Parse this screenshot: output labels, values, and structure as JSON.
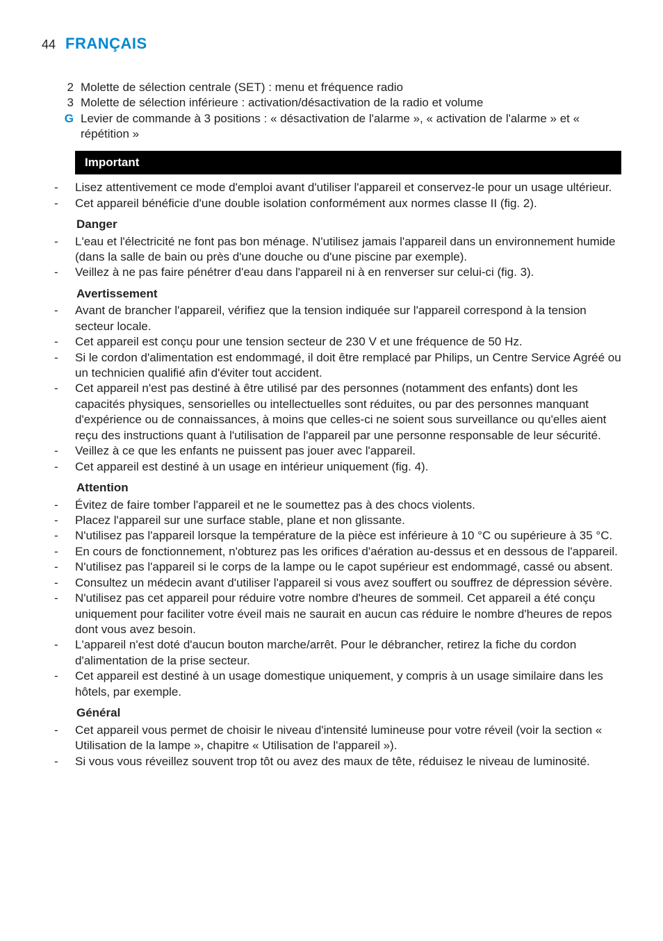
{
  "page": {
    "number": "44",
    "lang_title": "FRANÇAIS"
  },
  "top_numbered": [
    {
      "n": "2",
      "text": "Molette de sélection centrale (SET) : menu et fréquence radio"
    },
    {
      "n": "3",
      "text": "Molette de sélection inférieure : activation/désactivation de la radio et volume"
    }
  ],
  "top_lettered": {
    "letter": "G",
    "text": "Levier de commande à 3 positions : « désactivation de l'alarme », « activation de l'alarme » et « répétition »"
  },
  "sections": {
    "important": {
      "title": "Important",
      "items": [
        "Lisez attentivement ce mode d'emploi avant d'utiliser l'appareil et conservez-le pour un usage ultérieur.",
        "Cet appareil bénéficie d'une double isolation conformément aux normes classe II (fig. 2)."
      ]
    },
    "danger": {
      "title": "Danger",
      "items": [
        "L'eau et l'électricité ne font pas bon ménage. N'utilisez jamais l'appareil dans un environnement humide (dans la salle de bain ou près d'une douche ou d'une piscine par exemple).",
        "Veillez à ne pas faire pénétrer d'eau dans l'appareil ni à en renverser sur celui-ci (fig. 3)."
      ]
    },
    "avert": {
      "title": "Avertissement",
      "items": [
        "Avant de brancher l'appareil, vérifiez que la tension indiquée sur l'appareil correspond à la tension secteur locale.",
        "Cet appareil est conçu pour une tension secteur de 230 V et une fréquence de 50 Hz.",
        "Si le cordon d'alimentation est endommagé, il doit être remplacé par Philips, un Centre Service Agréé ou un technicien qualifié afin d'éviter tout accident.",
        "Cet appareil n'est pas destiné à être utilisé par des personnes (notamment des enfants) dont les capacités physiques, sensorielles ou intellectuelles sont réduites, ou par des personnes manquant d'expérience ou de connaissances, à moins que celles-ci ne soient sous surveillance ou qu'elles aient reçu des instructions quant à l'utilisation de l'appareil par une personne responsable de leur sécurité.",
        "Veillez à ce que les enfants ne puissent pas jouer avec l'appareil.",
        "Cet appareil est destiné à un usage en intérieur uniquement (fig. 4)."
      ]
    },
    "attention": {
      "title": "Attention",
      "items": [
        "Évitez de faire tomber l'appareil et ne le soumettez pas à des chocs violents.",
        "Placez l'appareil sur une surface stable, plane et non glissante.",
        "N'utilisez pas l'appareil lorsque la température de la pièce est inférieure à 10 °C ou supérieure à 35 °C.",
        "En cours de fonctionnement, n'obturez pas les orifices d'aération au-dessus et en dessous de l'appareil.",
        "N'utilisez pas l'appareil si le corps de la lampe ou le capot supérieur est endommagé, cassé ou absent.",
        "Consultez un médecin avant d'utiliser l'appareil si vous avez souffert ou souffrez de dépression sévère.",
        "N'utilisez pas cet appareil pour réduire votre nombre d'heures de sommeil. Cet appareil a été conçu uniquement pour faciliter votre éveil mais ne saurait en aucun cas réduire le nombre d'heures de repos dont vous avez besoin.",
        "L'appareil n'est doté d'aucun bouton marche/arrêt. Pour le débrancher, retirez la fiche du cordon d'alimentation de la prise secteur.",
        "Cet appareil est destiné à un usage domestique uniquement, y compris à un usage similaire dans les hôtels, par exemple."
      ]
    },
    "general": {
      "title": "Général",
      "items": [
        "Cet appareil vous permet de choisir le niveau d'intensité lumineuse pour votre réveil (voir la section « Utilisation de la lampe », chapitre « Utilisation de l'appareil »).",
        "Si vous vous réveillez souvent trop tôt ou avez des maux de tête, réduisez le niveau de luminosité."
      ]
    }
  }
}
